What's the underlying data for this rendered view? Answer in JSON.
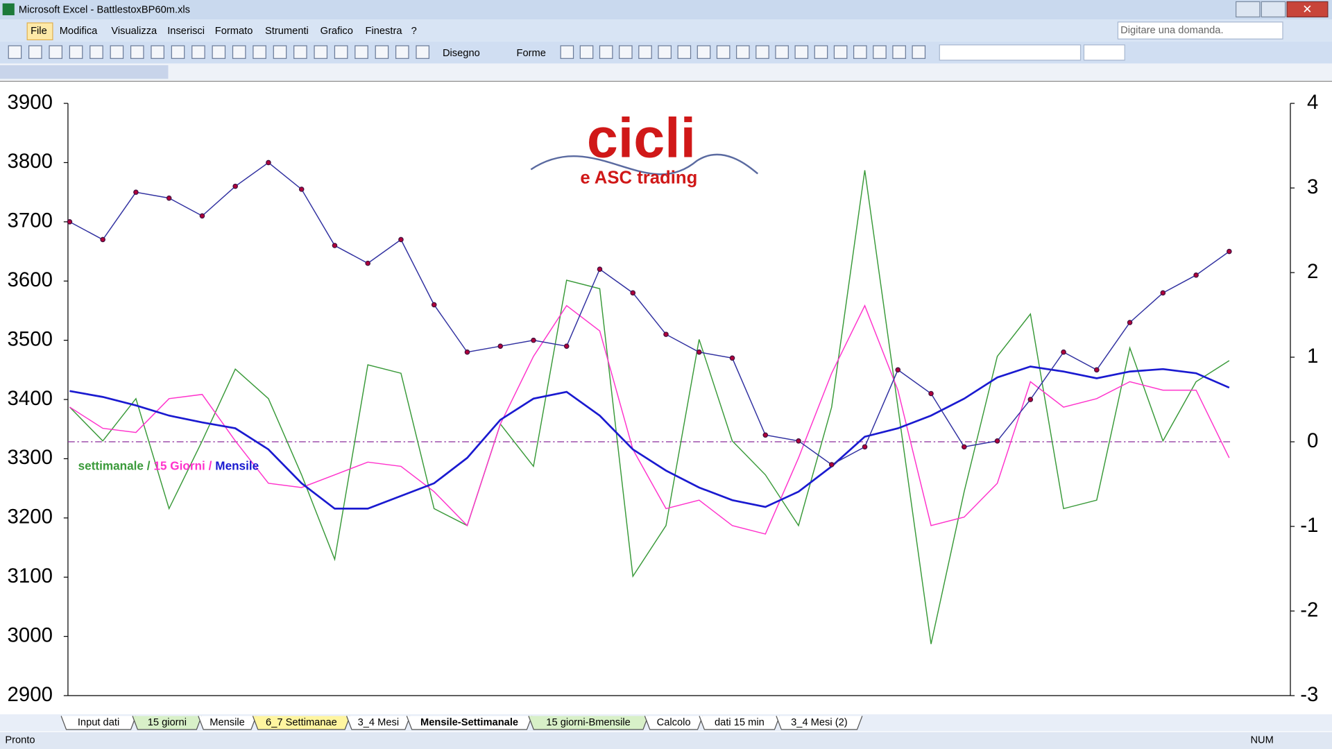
{
  "window": {
    "title": "Microsoft Excel - BattlestoxBP60m.xls"
  },
  "menu": [
    "File",
    "Modifica",
    "Visualizza",
    "Inserisci",
    "Formato",
    "Strumenti",
    "Grafico",
    "Finestra",
    "?"
  ],
  "help_box": "Digitare una domanda.",
  "toolbar": [
    "Disegno",
    "Forme"
  ],
  "sheet_tabs": [
    {
      "label": "Input dati",
      "color": "#ffffff"
    },
    {
      "label": "15 giorni",
      "color": "#d8f0c8"
    },
    {
      "label": "Mensile",
      "color": "#ffffff"
    },
    {
      "label": "6_7 Settimanae",
      "color": "#fff5a0"
    },
    {
      "label": "3_4 Mesi",
      "color": "#ffffff"
    },
    {
      "label": "Mensile-Settimanale",
      "color": "#ffffff"
    },
    {
      "label": "15 giorni-Bmensile",
      "color": "#d8f0c8"
    },
    {
      "label": "Calcolo",
      "color": "#ffffff"
    },
    {
      "label": "dati 15 min",
      "color": "#ffffff"
    },
    {
      "label": "3_4 Mesi (2)",
      "color": "#ffffff"
    }
  ],
  "status": {
    "left": "Pronto",
    "right": "NUM"
  },
  "chart_data": {
    "type": "line",
    "logo": {
      "title": "cicli",
      "subtitle": "e ASC trading"
    },
    "legend_separator": "/",
    "ylim": [
      2900,
      3900
    ],
    "yticks": [
      2900,
      3000,
      3100,
      3200,
      3300,
      3400,
      3500,
      3600,
      3700,
      3800,
      3900
    ],
    "y2lim": [
      -3,
      4
    ],
    "y2ticks": [
      -3,
      -2,
      -1,
      0,
      1,
      2,
      3,
      4
    ],
    "y2_hline": 0,
    "series": [
      {
        "color": "#b0003a",
        "line_color": "#3030a0",
        "markers": true,
        "values": [
          3700,
          3670,
          3750,
          3740,
          3710,
          3760,
          3800,
          3755,
          3660,
          3630,
          3670,
          3560,
          3480,
          3490,
          3500,
          3490,
          3620,
          3580,
          3510,
          3480,
          3470,
          3340,
          3330,
          3290,
          3320,
          3450,
          3410,
          3320,
          3330,
          3400,
          3480,
          3450,
          3530,
          3580,
          3610,
          3650
        ]
      },
      {
        "name": "settimanale",
        "color": "#3a9a3a",
        "axis": "y2",
        "values": [
          0.41,
          0.01,
          0.51,
          -0.79,
          0.01,
          0.86,
          0.51,
          -0.39,
          -1.39,
          0.91,
          0.81,
          -0.79,
          -0.99,
          0.21,
          -0.29,
          1.91,
          1.81,
          -1.59,
          -0.99,
          1.21,
          0.01,
          -0.39,
          -0.99,
          0.41,
          3.21,
          0.41,
          -2.39,
          -0.59,
          1.01,
          1.51,
          -0.79,
          -0.69,
          1.11,
          0.01,
          0.71,
          0.96
        ]
      },
      {
        "name": "15 Giorni",
        "color": "#ff33cc",
        "axis": "y2",
        "values": [
          0.41,
          0.16,
          0.11,
          0.51,
          0.56,
          0.01,
          -0.49,
          -0.54,
          -0.39,
          -0.24,
          -0.29,
          -0.59,
          -0.99,
          0.21,
          1.01,
          1.61,
          1.31,
          -0.09,
          -0.79,
          -0.69,
          -0.99,
          -1.09,
          -0.19,
          0.81,
          1.61,
          0.61,
          -0.99,
          -0.89,
          -0.49,
          0.71,
          0.41,
          0.51,
          0.71,
          0.61,
          0.61,
          -0.19
        ]
      },
      {
        "name": "Mensile",
        "color": "#1a1ad0",
        "axis": "y2",
        "values": [
          0.6,
          0.53,
          0.43,
          0.31,
          0.23,
          0.16,
          -0.09,
          -0.49,
          -0.79,
          -0.79,
          -0.64,
          -0.49,
          -0.19,
          0.26,
          0.51,
          0.59,
          0.31,
          -0.09,
          -0.34,
          -0.54,
          -0.69,
          -0.77,
          -0.59,
          -0.29,
          0.06,
          0.16,
          0.31,
          0.51,
          0.76,
          0.89,
          0.83,
          0.75,
          0.83,
          0.86,
          0.81,
          0.64
        ]
      }
    ]
  }
}
